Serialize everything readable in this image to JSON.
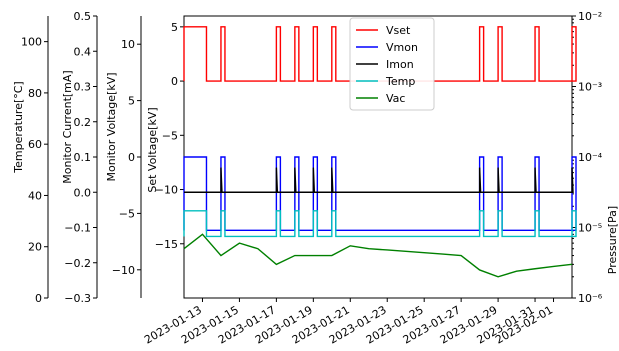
{
  "chart_data": {
    "type": "line",
    "axes": {
      "temperature": {
        "label": "Temperature[°C]",
        "ylim": [
          0,
          110
        ],
        "ticks": [
          "0",
          "20",
          "40",
          "60",
          "80",
          "100"
        ],
        "tick_values": [
          0,
          20,
          40,
          60,
          80,
          100
        ]
      },
      "current": {
        "label": "Monitor Current[mA]",
        "ylim": [
          -0.3,
          0.5
        ],
        "ticks": [
          "−0.3",
          "−0.2",
          "−0.1",
          "0.0",
          "0.1",
          "0.2",
          "0.3",
          "0.4",
          "0.5"
        ],
        "tick_values": [
          -0.3,
          -0.2,
          -0.1,
          0.0,
          0.1,
          0.2,
          0.3,
          0.4,
          0.5
        ]
      },
      "voltage": {
        "label": "Monitor Voltage[kV]",
        "ylim": [
          -12.5,
          12.5
        ],
        "ticks": [
          "−10",
          "−5",
          "0",
          "5",
          "10"
        ],
        "tick_values": [
          -10,
          -5,
          0,
          5,
          10
        ]
      },
      "setvoltage": {
        "label": "Set Voltage[kV]",
        "ylim": [
          -20,
          6
        ],
        "ticks": [
          "−15",
          "−10",
          "−5",
          "0",
          "5"
        ],
        "tick_values": [
          -15,
          -10,
          -5,
          0,
          5
        ]
      },
      "pressure": {
        "label": "Pressure[Pa]",
        "scale": "log",
        "ylim": [
          1e-06,
          0.01
        ],
        "ticks": [
          "10⁻⁶",
          "10⁻⁵",
          "10⁻⁴",
          "10⁻³",
          "10⁻²"
        ],
        "tick_values": [
          1e-06,
          1e-05,
          0.0001,
          0.001,
          0.01
        ]
      }
    },
    "x": {
      "range": [
        "2023-01-12",
        "2023-02-02"
      ],
      "ticks": [
        "2023-01-13",
        "2023-01-15",
        "2023-01-17",
        "2023-01-19",
        "2023-01-21",
        "2023-01-23",
        "2023-01-25",
        "2023-01-27",
        "2023-01-29",
        "2023-01-31",
        "2023-02-01"
      ],
      "tick_dates": [
        "2023-01-13",
        "2023-01-15",
        "2023-01-17",
        "2023-01-19",
        "2023-01-21",
        "2023-01-23",
        "2023-01-25",
        "2023-01-27",
        "2023-01-29",
        "2023-01-31",
        "2023-02-01"
      ]
    },
    "legend": {
      "placement": "top-center"
    },
    "series": [
      {
        "name": "Vset",
        "color": "#ff0000",
        "axis": "setvoltage",
        "baseline": 0,
        "pulse": 5,
        "pulses": [
          [
            "2023-01-12",
            "2023-01-13"
          ],
          [
            "2023-01-14",
            "2023-01-14"
          ],
          [
            "2023-01-17",
            "2023-01-17"
          ],
          [
            "2023-01-18",
            "2023-01-18"
          ],
          [
            "2023-01-19",
            "2023-01-19"
          ],
          [
            "2023-01-20",
            "2023-01-20"
          ],
          [
            "2023-01-28",
            "2023-01-28"
          ],
          [
            "2023-01-29",
            "2023-01-29"
          ],
          [
            "2023-01-31",
            "2023-01-31"
          ],
          [
            "2023-02-02",
            "2023-02-02"
          ]
        ]
      },
      {
        "name": "Vmon",
        "color": "#0000ff",
        "axis": "voltage",
        "baseline": -6.5,
        "pulse": 0,
        "pulses": [
          [
            "2023-01-12",
            "2023-01-13"
          ],
          [
            "2023-01-14",
            "2023-01-14"
          ],
          [
            "2023-01-17",
            "2023-01-17"
          ],
          [
            "2023-01-18",
            "2023-01-18"
          ],
          [
            "2023-01-19",
            "2023-01-19"
          ],
          [
            "2023-01-20",
            "2023-01-20"
          ],
          [
            "2023-01-28",
            "2023-01-28"
          ],
          [
            "2023-01-29",
            "2023-01-29"
          ],
          [
            "2023-01-31",
            "2023-01-31"
          ],
          [
            "2023-02-02",
            "2023-02-02"
          ]
        ]
      },
      {
        "name": "Imon",
        "color": "#000000",
        "axis": "current",
        "baseline": 0.0,
        "spike": 0.07,
        "spikes": [
          "2023-01-14",
          "2023-01-17",
          "2023-01-18",
          "2023-01-19",
          "2023-01-20",
          "2023-01-28",
          "2023-01-29",
          "2023-01-31",
          "2023-02-02"
        ]
      },
      {
        "name": "Temp",
        "color": "#00bfbf",
        "axis": "temperature",
        "baseline": 24,
        "pulse": 34,
        "pulses": [
          [
            "2023-01-12",
            "2023-01-13"
          ],
          [
            "2023-01-14",
            "2023-01-14"
          ],
          [
            "2023-01-17",
            "2023-01-17"
          ],
          [
            "2023-01-18",
            "2023-01-18"
          ],
          [
            "2023-01-19",
            "2023-01-19"
          ],
          [
            "2023-01-20",
            "2023-01-20"
          ],
          [
            "2023-01-28",
            "2023-01-28"
          ],
          [
            "2023-01-29",
            "2023-01-29"
          ],
          [
            "2023-01-31",
            "2023-01-31"
          ],
          [
            "2023-02-02",
            "2023-02-02"
          ]
        ]
      },
      {
        "name": "Vac",
        "color": "#008000",
        "axis": "pressure",
        "points": [
          [
            "2023-01-12",
            5e-06
          ],
          [
            "2023-01-13",
            8e-06
          ],
          [
            "2023-01-14",
            4e-06
          ],
          [
            "2023-01-15",
            6e-06
          ],
          [
            "2023-01-16",
            5e-06
          ],
          [
            "2023-01-17",
            3e-06
          ],
          [
            "2023-01-18",
            4e-06
          ],
          [
            "2023-01-19",
            4e-06
          ],
          [
            "2023-01-20",
            4e-06
          ],
          [
            "2023-01-21",
            5.5e-06
          ],
          [
            "2023-01-22",
            5e-06
          ],
          [
            "2023-01-23",
            4.8e-06
          ],
          [
            "2023-01-24",
            4.6e-06
          ],
          [
            "2023-01-25",
            4.4e-06
          ],
          [
            "2023-01-26",
            4.2e-06
          ],
          [
            "2023-01-27",
            4e-06
          ],
          [
            "2023-01-28",
            2.5e-06
          ],
          [
            "2023-01-29",
            2e-06
          ],
          [
            "2023-01-30",
            2.4e-06
          ],
          [
            "2023-01-31",
            2.6e-06
          ],
          [
            "2023-02-01",
            2.8e-06
          ],
          [
            "2023-02-02",
            3e-06
          ]
        ]
      }
    ]
  }
}
